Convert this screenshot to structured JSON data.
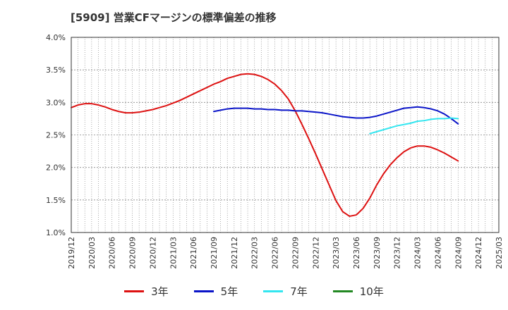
{
  "title": "[5909]  営業CFマージンの標準偏差の推移",
  "colors": {
    "3y": "#dd1111",
    "5y": "#0a14c8",
    "7y": "#33e6f0",
    "10y": "#228822",
    "grid": "#888888",
    "axis": "#333333"
  },
  "chart_data": {
    "type": "line",
    "title": "[5909]  営業CFマージンの標準偏差の推移",
    "xlabel": "",
    "ylabel": "",
    "ylim": [
      0.01,
      0.04
    ],
    "y_ticks": [
      "1.0%",
      "1.5%",
      "2.0%",
      "2.5%",
      "3.0%",
      "3.5%",
      "4.0%"
    ],
    "y_tick_values": [
      0.01,
      0.015,
      0.02,
      0.025,
      0.03,
      0.035,
      0.04
    ],
    "x_range": [
      "2019-12",
      "2025-03"
    ],
    "x_ticks": [
      "2019/12",
      "2020/03",
      "2020/06",
      "2020/09",
      "2020/12",
      "2021/03",
      "2021/06",
      "2021/09",
      "2021/12",
      "2022/03",
      "2022/06",
      "2022/09",
      "2022/12",
      "2023/03",
      "2023/06",
      "2023/09",
      "2023/12",
      "2024/03",
      "2024/06",
      "2024/09",
      "2024/12",
      "2025/03"
    ],
    "grid": true,
    "legend_position": "bottom",
    "series": [
      {
        "name": "3年",
        "key": "3y",
        "points": [
          [
            "2019-12",
            0.0292
          ],
          [
            "2020-01",
            0.0296
          ],
          [
            "2020-02",
            0.0298
          ],
          [
            "2020-03",
            0.0298
          ],
          [
            "2020-04",
            0.0296
          ],
          [
            "2020-05",
            0.0293
          ],
          [
            "2020-06",
            0.0289
          ],
          [
            "2020-07",
            0.0286
          ],
          [
            "2020-08",
            0.0284
          ],
          [
            "2020-09",
            0.0284
          ],
          [
            "2020-10",
            0.0285
          ],
          [
            "2020-11",
            0.0287
          ],
          [
            "2020-12",
            0.0289
          ],
          [
            "2021-01",
            0.0292
          ],
          [
            "2021-02",
            0.0295
          ],
          [
            "2021-03",
            0.0299
          ],
          [
            "2021-04",
            0.0303
          ],
          [
            "2021-05",
            0.0308
          ],
          [
            "2021-06",
            0.0313
          ],
          [
            "2021-07",
            0.0318
          ],
          [
            "2021-08",
            0.0323
          ],
          [
            "2021-09",
            0.0328
          ],
          [
            "2021-10",
            0.0332
          ],
          [
            "2021-11",
            0.0337
          ],
          [
            "2021-12",
            0.034
          ],
          [
            "2022-01",
            0.0343
          ],
          [
            "2022-02",
            0.0344
          ],
          [
            "2022-03",
            0.0343
          ],
          [
            "2022-04",
            0.034
          ],
          [
            "2022-05",
            0.0335
          ],
          [
            "2022-06",
            0.0328
          ],
          [
            "2022-07",
            0.0318
          ],
          [
            "2022-08",
            0.0305
          ],
          [
            "2022-09",
            0.0287
          ],
          [
            "2022-10",
            0.0266
          ],
          [
            "2022-11",
            0.0244
          ],
          [
            "2022-12",
            0.0221
          ],
          [
            "2023-01",
            0.0197
          ],
          [
            "2023-02",
            0.0173
          ],
          [
            "2023-03",
            0.0149
          ],
          [
            "2023-04",
            0.0132
          ],
          [
            "2023-05",
            0.0125
          ],
          [
            "2023-06",
            0.0127
          ],
          [
            "2023-07",
            0.0137
          ],
          [
            "2023-08",
            0.0153
          ],
          [
            "2023-09",
            0.0173
          ],
          [
            "2023-10",
            0.019
          ],
          [
            "2023-11",
            0.0204
          ],
          [
            "2023-12",
            0.0215
          ],
          [
            "2024-01",
            0.0224
          ],
          [
            "2024-02",
            0.023
          ],
          [
            "2024-03",
            0.0233
          ],
          [
            "2024-04",
            0.0233
          ],
          [
            "2024-05",
            0.0231
          ],
          [
            "2024-06",
            0.0227
          ],
          [
            "2024-07",
            0.0222
          ],
          [
            "2024-08",
            0.0216
          ],
          [
            "2024-09",
            0.021
          ]
        ]
      },
      {
        "name": "5年",
        "key": "5y",
        "points": [
          [
            "2021-09",
            0.0286
          ],
          [
            "2021-10",
            0.0288
          ],
          [
            "2021-11",
            0.029
          ],
          [
            "2021-12",
            0.0291
          ],
          [
            "2022-01",
            0.0291
          ],
          [
            "2022-02",
            0.0291
          ],
          [
            "2022-03",
            0.029
          ],
          [
            "2022-04",
            0.029
          ],
          [
            "2022-05",
            0.0289
          ],
          [
            "2022-06",
            0.0289
          ],
          [
            "2022-07",
            0.0288
          ],
          [
            "2022-08",
            0.0288
          ],
          [
            "2022-09",
            0.0287
          ],
          [
            "2022-10",
            0.0287
          ],
          [
            "2022-11",
            0.0286
          ],
          [
            "2022-12",
            0.0285
          ],
          [
            "2023-01",
            0.0284
          ],
          [
            "2023-02",
            0.0282
          ],
          [
            "2023-03",
            0.028
          ],
          [
            "2023-04",
            0.0278
          ],
          [
            "2023-05",
            0.0277
          ],
          [
            "2023-06",
            0.0276
          ],
          [
            "2023-07",
            0.0276
          ],
          [
            "2023-08",
            0.0277
          ],
          [
            "2023-09",
            0.0279
          ],
          [
            "2023-10",
            0.0282
          ],
          [
            "2023-11",
            0.0285
          ],
          [
            "2023-12",
            0.0288
          ],
          [
            "2024-01",
            0.0291
          ],
          [
            "2024-02",
            0.0292
          ],
          [
            "2024-03",
            0.0293
          ],
          [
            "2024-04",
            0.0292
          ],
          [
            "2024-05",
            0.029
          ],
          [
            "2024-06",
            0.0287
          ],
          [
            "2024-07",
            0.0282
          ],
          [
            "2024-08",
            0.0275
          ],
          [
            "2024-09",
            0.0267
          ]
        ]
      },
      {
        "name": "7年",
        "key": "7y",
        "points": [
          [
            "2023-08",
            0.0252
          ],
          [
            "2023-09",
            0.0255
          ],
          [
            "2023-10",
            0.0258
          ],
          [
            "2023-11",
            0.0261
          ],
          [
            "2023-12",
            0.0264
          ],
          [
            "2024-01",
            0.0266
          ],
          [
            "2024-02",
            0.0268
          ],
          [
            "2024-03",
            0.0271
          ],
          [
            "2024-04",
            0.0272
          ],
          [
            "2024-05",
            0.0274
          ],
          [
            "2024-06",
            0.0275
          ],
          [
            "2024-07",
            0.0275
          ],
          [
            "2024-08",
            0.0276
          ],
          [
            "2024-09",
            0.0275
          ]
        ]
      },
      {
        "name": "10年",
        "key": "10y",
        "points": []
      }
    ]
  }
}
